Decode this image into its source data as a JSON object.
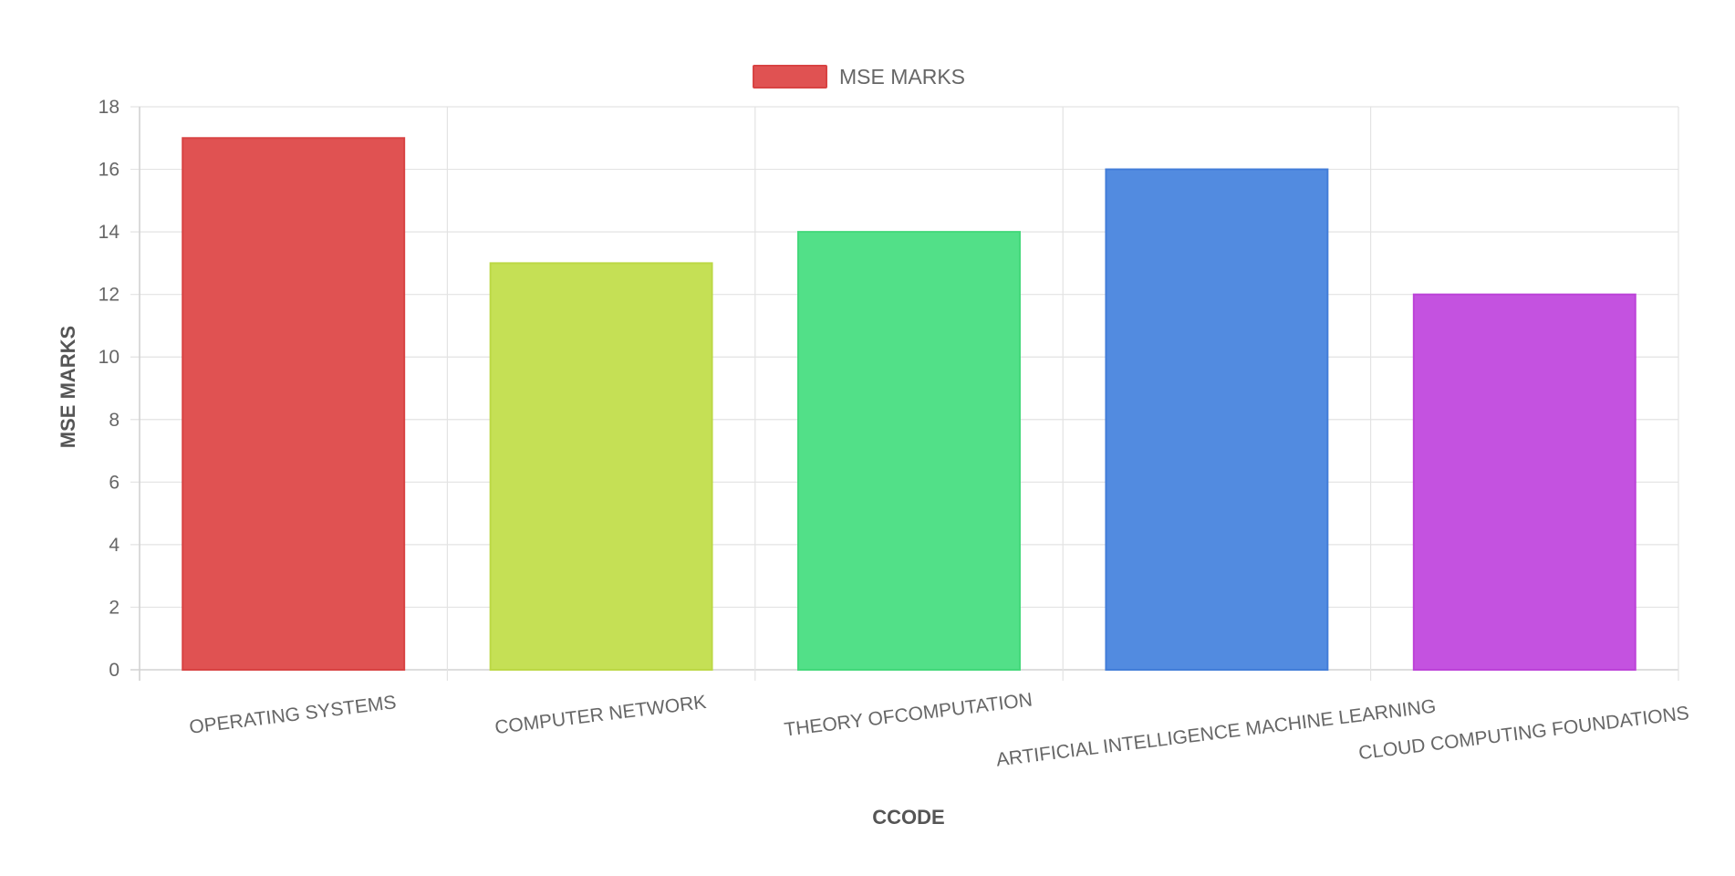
{
  "chart_data": {
    "type": "bar",
    "categories": [
      "OPERATING SYSTEMS",
      "COMPUTER NETWORK",
      "THEORY OFCOMPUTATION",
      "ARTIFICIAL INTELLIGENCE MACHINE LEARNING",
      "CLOUD COMPUTING FOUNDATIONS"
    ],
    "series": [
      {
        "name": "MSE MARKS",
        "values": [
          17,
          13,
          14,
          16,
          12
        ]
      }
    ],
    "bar_colors": [
      "#e05252",
      "#c5e055",
      "#52e088",
      "#528be0",
      "#c452e0"
    ],
    "bar_border_colors": [
      "#d84343",
      "#bcd845",
      "#43d87a",
      "#437dd8",
      "#bc43d8"
    ],
    "legend_color": "#e05252",
    "xlabel": "CCODE",
    "ylabel": "MSE MARKS",
    "ylim": [
      0,
      18
    ],
    "yticks": [
      "0",
      "2",
      "4",
      "6",
      "8",
      "10",
      "12",
      "14",
      "16",
      "18"
    ],
    "grid": true,
    "legend_position": "top-center"
  }
}
